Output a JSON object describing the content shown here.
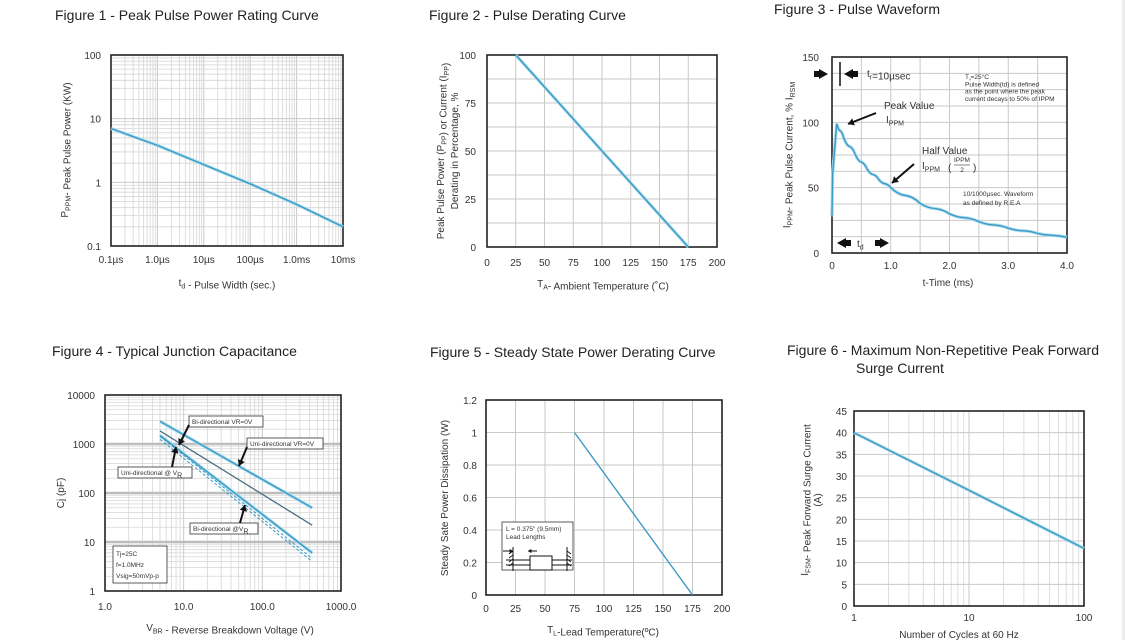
{
  "titles": {
    "fig1": "Figure 1 - Peak Pulse Power Rating Curve",
    "fig2": "Figure 2 - Pulse Derating Curve",
    "fig3": "Figure 3 - Pulse Waveform",
    "fig4": "Figure 4 - Typical Junction Capacitance",
    "fig5": "Figure 5 - Steady State Power Derating Curve",
    "fig6_line1": "Figure 6 - Maximum Non-Repetitive Peak Forward",
    "fig6_line2": "Surge Current"
  },
  "colors": {
    "curve": "#3b9ac4",
    "curve_dark": "#4a6f82",
    "grid": "#c9c9c9",
    "frame": "#222222"
  },
  "chart_data": [
    {
      "id": "fig1",
      "type": "line",
      "title": "Figure 1 - Peak Pulse Power Rating Curve",
      "xscale": "log",
      "yscale": "log",
      "xlabel": "t_d - Pulse Width (sec.)",
      "xlabel_main": "t",
      "xlabel_sub": "d",
      "xlabel_rest": " - Pulse Width (sec.)",
      "ylabel_main": "P",
      "ylabel_sub": "PPM",
      "ylabel_rest": "- Peak Pulse Power (KW)",
      "xlim_seconds": [
        1e-07,
        0.01
      ],
      "ylim": [
        0.1,
        100
      ],
      "x_ticks": [
        {
          "value": 1e-07,
          "label": "0.1µs"
        },
        {
          "value": 1e-06,
          "label": "1.0µs"
        },
        {
          "value": 1e-05,
          "label": "10µs"
        },
        {
          "value": 0.0001,
          "label": "100µs"
        },
        {
          "value": 0.001,
          "label": "1.0ms"
        },
        {
          "value": 0.01,
          "label": "10ms"
        }
      ],
      "y_ticks": [
        {
          "value": 0.1,
          "label": "0.1"
        },
        {
          "value": 1,
          "label": "1"
        },
        {
          "value": 10,
          "label": "10"
        },
        {
          "value": 100,
          "label": "100"
        }
      ],
      "grid": true,
      "series": [
        {
          "name": "Peak pulse power",
          "x": [
            1e-07,
            1e-06,
            1e-05,
            0.0001,
            0.001,
            0.01
          ],
          "y": [
            7.0,
            3.8,
            1.9,
            0.95,
            0.45,
            0.2
          ]
        }
      ]
    },
    {
      "id": "fig2",
      "type": "line",
      "title": "Figure 2 - Pulse Derating Curve",
      "xlabel_main": "T",
      "xlabel_sub": "A",
      "xlabel_rest": "- Ambient Temperature (˚C)",
      "ylabel_line1": "Peak Pulse Power (P",
      "ylabel_line1_sub": "PP",
      "ylabel_line1_mid": ") or Current (I",
      "ylabel_line1_sub2": "PP",
      "ylabel_line1_end": ")",
      "ylabel_line2": "Derating in Percentage, %",
      "xlim": [
        0,
        200
      ],
      "ylim": [
        0,
        100
      ],
      "x_ticks": [
        0,
        25,
        50,
        75,
        100,
        125,
        150,
        175,
        200
      ],
      "y_ticks": [
        0,
        25,
        50,
        75,
        100
      ],
      "grid": true,
      "series": [
        {
          "name": "Derating",
          "x": [
            25,
            175
          ],
          "y": [
            100,
            0
          ]
        }
      ]
    },
    {
      "id": "fig3",
      "type": "line",
      "title": "Figure 3 - Pulse Waveform",
      "xlabel": "t-Time (ms)",
      "ylabel_main": "I",
      "ylabel_sub": "PPM",
      "ylabel_rest": "- Peak Pulse Current, % I",
      "ylabel_sub2": "RSM",
      "xlim": [
        0,
        4.0
      ],
      "ylim": [
        0,
        150
      ],
      "x_ticks": [
        {
          "value": 0,
          "label": "0"
        },
        {
          "value": 1,
          "label": "1.0"
        },
        {
          "value": 2,
          "label": "2.0"
        },
        {
          "value": 3,
          "label": "3.0"
        },
        {
          "value": 4,
          "label": "4.0"
        }
      ],
      "y_ticks": [
        0,
        50,
        100,
        150
      ],
      "grid": true,
      "series": [
        {
          "name": "10/1000µsec waveform",
          "x": [
            0,
            0.01,
            0.08,
            0.2,
            0.4,
            0.6,
            0.8,
            1.0,
            1.5,
            2.0,
            2.5,
            3.0,
            3.5,
            4.0
          ],
          "y": [
            28,
            60,
            99,
            88,
            75,
            64,
            56,
            50,
            38,
            30,
            24,
            19,
            15,
            12
          ]
        }
      ],
      "annotations": {
        "tr_label": "t",
        "tr_sub": "r",
        "tr_value": "=10µsec",
        "peak_line1": "Peak Value",
        "peak_line2": "I",
        "peak_line2_sub": "PPM",
        "half_line1": "Half Value",
        "half_line2": "I",
        "half_line2_sub": "PPM",
        "half_frac_num": "IPPM",
        "half_frac_den": "2",
        "td_label": "t",
        "td_sub": "d",
        "cond_line1": "T⁁=25°C",
        "cond_line2": "Pulse Width(td) is defined",
        "cond_line3": "as the point where the peak",
        "cond_line4": "current decays to  50% of IPPM",
        "wave_line1": "10/1000µsec. Waveform",
        "wave_line2": "as defined by R.E.A"
      }
    },
    {
      "id": "fig4",
      "type": "line",
      "title": "Figure 4 - Typical Junction Capacitance",
      "xscale": "log",
      "yscale": "log",
      "xlabel_main": "V",
      "xlabel_sub": "BR",
      "xlabel_rest": " - Reverse Breakdown Voltage (V)",
      "ylabel": "Cj (pF)",
      "xlim": [
        1,
        1000
      ],
      "ylim": [
        1,
        10000
      ],
      "x_ticks": [
        {
          "value": 1,
          "label": "1.0"
        },
        {
          "value": 10,
          "label": "10.0"
        },
        {
          "value": 100,
          "label": "100.0"
        },
        {
          "value": 1000,
          "label": "1000.0"
        }
      ],
      "y_ticks": [
        {
          "value": 1,
          "label": "1"
        },
        {
          "value": 10,
          "label": "10"
        },
        {
          "value": 100,
          "label": "100"
        },
        {
          "value": 1000,
          "label": "1000"
        },
        {
          "value": 10000,
          "label": "10000"
        }
      ],
      "grid": true,
      "series": [
        {
          "name": "Uni-directional VR=0V",
          "style": "solid-blue",
          "x": [
            5,
            430
          ],
          "y": [
            2900,
            50
          ]
        },
        {
          "name": "Bi-directional VR=0V",
          "style": "solid-dark",
          "x": [
            5,
            430
          ],
          "y": [
            1850,
            22
          ]
        },
        {
          "name": "Uni-directional @ VR",
          "style": "solid-blue",
          "x": [
            5,
            430
          ],
          "y": [
            1500,
            6
          ]
        },
        {
          "name": "Bi-directional @VR",
          "style": "dashed-blue",
          "x": [
            5,
            430
          ],
          "y": [
            1250,
            4
          ]
        }
      ],
      "labels": {
        "bi_vr0": "Bi-directional VR=0V",
        "uni_vr0": "Uni-directional VR=0V",
        "uni_vr": "Uni-directional @ V",
        "uni_vr_sub": "R",
        "bi_vr": "Bi-directional @V",
        "bi_vr_sub": "R"
      },
      "conditions": [
        "Tj=25C",
        "f=1.0MHz",
        "Vsig=50mVp-p"
      ]
    },
    {
      "id": "fig5",
      "type": "line",
      "title": "Figure 5 - Steady State Power Derating Curve",
      "xlabel_main": "T",
      "xlabel_sub": "L",
      "xlabel_rest": "-Lead Temperature(ºC)",
      "ylabel": "Steady Sate Power Dissipation (W)",
      "xlim": [
        0,
        200
      ],
      "ylim": [
        0,
        1.2
      ],
      "x_ticks": [
        0,
        25,
        50,
        75,
        100,
        125,
        150,
        175,
        200
      ],
      "y_ticks": [
        {
          "value": 0,
          "label": "0"
        },
        {
          "value": 0.2,
          "label": "0.2"
        },
        {
          "value": 0.4,
          "label": "0.4"
        },
        {
          "value": 0.6,
          "label": "0.6"
        },
        {
          "value": 0.8,
          "label": "0.8"
        },
        {
          "value": 1,
          "label": "1"
        },
        {
          "value": 1.2,
          "label": "1.2"
        }
      ],
      "grid": true,
      "series": [
        {
          "name": "Power dissipation",
          "x": [
            75,
            175
          ],
          "y": [
            1.0,
            0
          ]
        }
      ],
      "inset": {
        "line1": "L = 0.375\" (9.5mm)",
        "line2": "Lead Lengths"
      }
    },
    {
      "id": "fig6",
      "type": "line",
      "title": "Figure 6 - Maximum Non-Repetitive Peak Forward Surge Current",
      "xscale": "log",
      "xlabel": "Number of Cycles at 60 Hz",
      "ylabel_main": "I",
      "ylabel_sub": "FSM",
      "ylabel_rest": "- Peak Forward Surge Current",
      "ylabel_line2": "(A)",
      "xlim": [
        1,
        100
      ],
      "ylim": [
        0,
        45
      ],
      "x_ticks": [
        {
          "value": 1,
          "label": "1"
        },
        {
          "value": 10,
          "label": "10"
        },
        {
          "value": 100,
          "label": "100"
        }
      ],
      "y_ticks": [
        0,
        5,
        10,
        15,
        20,
        25,
        30,
        35,
        40,
        45
      ],
      "grid": true,
      "series": [
        {
          "name": "Surge current",
          "x": [
            1,
            10,
            100
          ],
          "y": [
            40,
            26.7,
            13.3
          ]
        }
      ]
    }
  ]
}
